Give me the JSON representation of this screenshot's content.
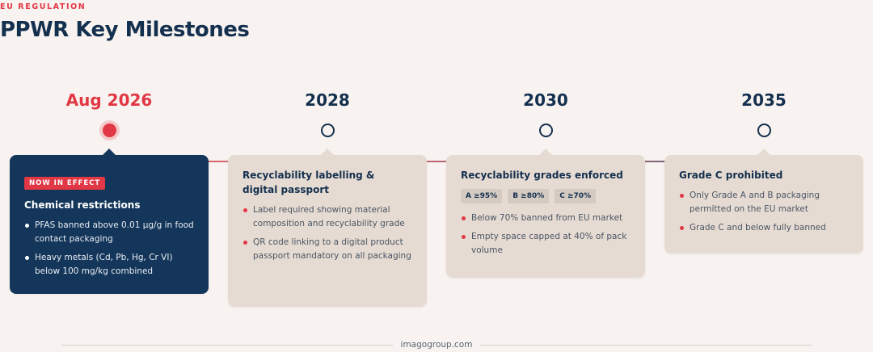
{
  "header": {
    "eyebrow": "EU REGULATION",
    "title": "PPWR Key Milestones"
  },
  "colors": {
    "accent": "#e23744",
    "navy": "#14304f",
    "card_bg": "#e6dbd2",
    "card_active_bg": "#14365a",
    "page_bg": "#f8f3f0"
  },
  "milestones": [
    {
      "year": "Aug 2026",
      "badge": "NOW IN EFFECT",
      "title": "Chemical restrictions",
      "bullets": [
        "PFAS banned above 0.01 µg/g in food contact packaging",
        "Heavy metals (Cd, Pb, Hg, Cr VI) below 100 mg/kg combined"
      ]
    },
    {
      "year": "2028",
      "title": "Recyclability labelling & digital passport",
      "bullets": [
        "Label required showing material composition and recyclability grade",
        "QR code linking to a digital product passport mandatory on all packaging"
      ]
    },
    {
      "year": "2030",
      "title": "Recyclability grades enforced",
      "grades": [
        "A ≥95%",
        "B ≥80%",
        "C ≥70%"
      ],
      "bullets": [
        "Below 70% banned from EU market",
        "Empty space capped at 40% of pack volume"
      ]
    },
    {
      "year": "2035",
      "title": "Grade C prohibited",
      "bullets": [
        "Only Grade A and B packaging permitted on the EU market",
        "Grade C and below fully banned"
      ]
    }
  ],
  "footer": {
    "brand": "imagogroup.com"
  }
}
